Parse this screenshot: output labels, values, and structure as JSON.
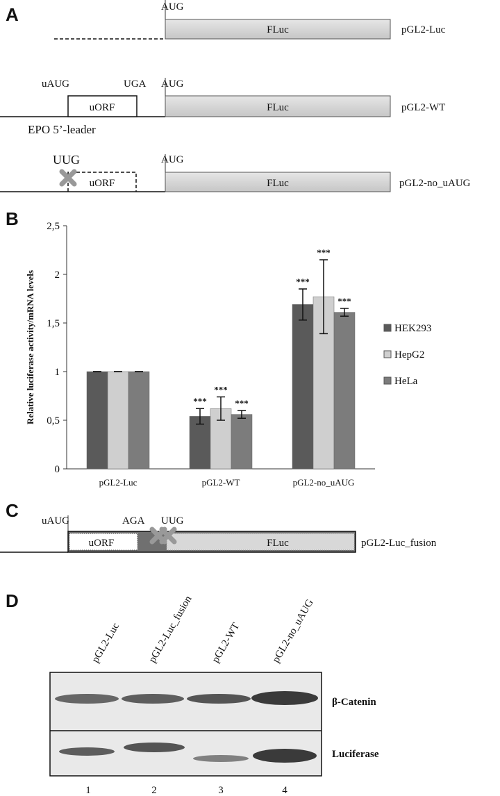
{
  "panel_a": {
    "label": "A",
    "constructs": [
      {
        "start_codon": "AUG",
        "orf": "FLuc",
        "name": "pGL2-Luc"
      },
      {
        "uorf_start": "uAUG",
        "uorf_stop": "UGA",
        "uorf": "uORF",
        "start_codon": "AUG",
        "orf": "FLuc",
        "name": "pGL2-WT",
        "leader": "EPO 5’-leader"
      },
      {
        "uorf_start": "UUG",
        "uorf": "uORF",
        "start_codon": "AUG",
        "orf": "FLuc",
        "name": "pGL2-no_uAUG"
      }
    ]
  },
  "panel_b": {
    "label": "B"
  },
  "chart_data": {
    "type": "bar",
    "y_label": "Relative luciferase activity/mRNA levels",
    "categories": [
      "pGL2-Luc",
      "pGL2-WT",
      "pGL2-no_uAUG"
    ],
    "series": [
      {
        "name": "HEK293",
        "color": "#5a5a5a",
        "values": [
          1,
          0.54,
          1.69
        ],
        "errors": [
          0,
          0.08,
          0.16
        ],
        "annotations": [
          null,
          "***",
          "***"
        ]
      },
      {
        "name": "HepG2",
        "color": "#cfcfcf",
        "values": [
          1,
          0.62,
          1.77
        ],
        "errors": [
          0,
          0.12,
          0.38
        ],
        "annotations": [
          null,
          "***",
          "***"
        ]
      },
      {
        "name": "HeLa",
        "color": "#7c7c7c",
        "values": [
          1,
          0.56,
          1.61
        ],
        "errors": [
          0,
          0.04,
          0.04
        ],
        "annotations": [
          null,
          "***",
          "***"
        ]
      }
    ],
    "ylim": [
      0,
      2.5
    ],
    "yticks": [
      0,
      {
        "value": 0.5,
        "label": "0,5"
      },
      1,
      {
        "value": 1.5,
        "label": "1,5"
      },
      2,
      {
        "value": 2.5,
        "label": "2,5"
      }
    ],
    "legend": "right"
  },
  "panel_c": {
    "label": "C",
    "uorf_start": "uAUG",
    "mutation_1": "AGA",
    "mutation_2": "UUG",
    "uorf": "uORF",
    "orf": "FLuc",
    "name": "pGL2-Luc_fusion"
  },
  "panel_d": {
    "label": "D",
    "lanes": [
      "pGL2-Luc",
      "pGL2-Luc_fusion",
      "pGL2-WT",
      "pGL2-no_uAUG"
    ],
    "lane_numbers": [
      1,
      2,
      3,
      4
    ],
    "rows": [
      "β-Catenin",
      "Luciferase"
    ]
  }
}
